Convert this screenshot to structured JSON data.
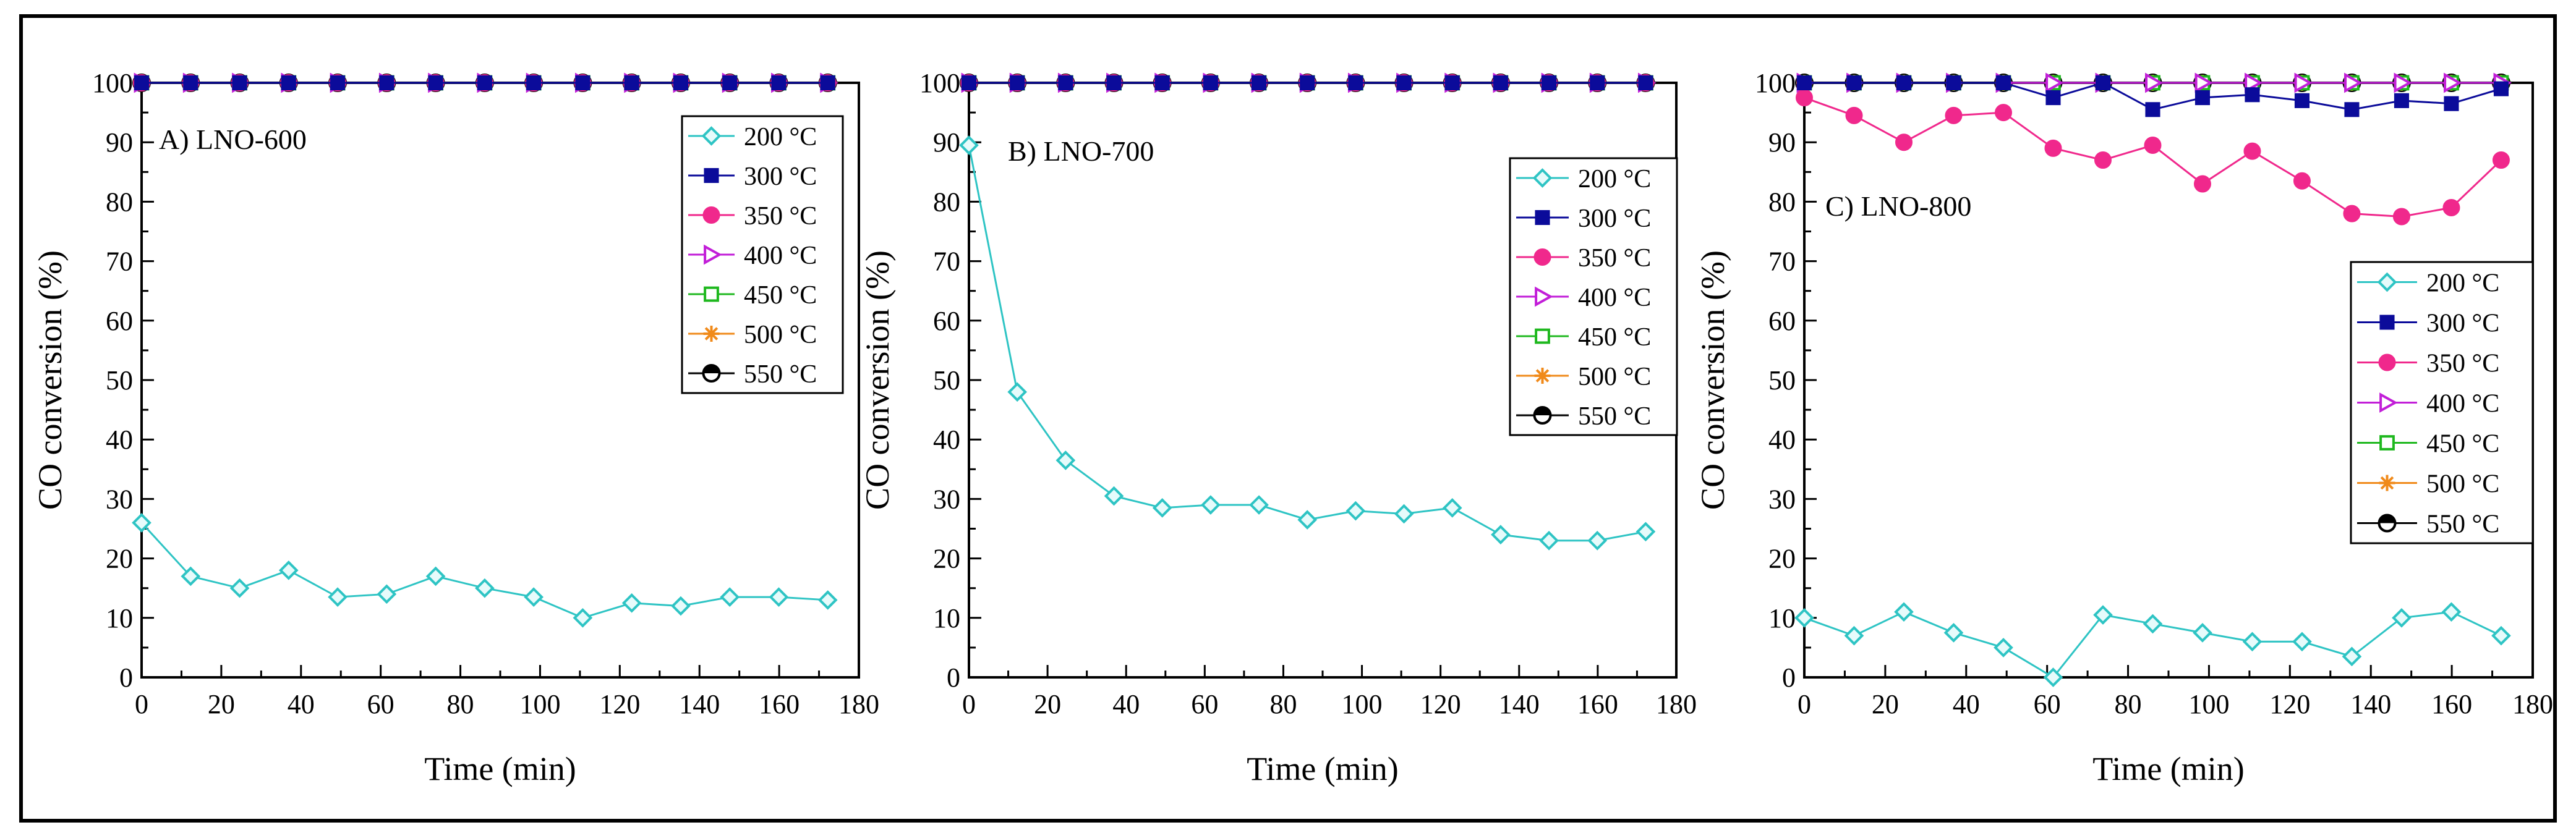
{
  "figure": {
    "colors": {
      "s200": "#2EC4C4",
      "s300": "#0B0B9A",
      "s350": "#F0288C",
      "s400": "#C21ED8",
      "s450": "#1FB81F",
      "s500": "#F08A1A",
      "s550": "#000000"
    }
  },
  "chart_data": [
    {
      "type": "line",
      "title": "A) LNO-600",
      "xlabel": "Time (min)",
      "ylabel": "CO conversion (%)",
      "xlim": [
        0,
        180
      ],
      "ylim": [
        0,
        100
      ],
      "xticks": [
        "0",
        "20",
        "40",
        "60",
        "80",
        "100",
        "120",
        "140",
        "160",
        "180"
      ],
      "yticks": [
        "0",
        "10",
        "20",
        "30",
        "40",
        "50",
        "60",
        "70",
        "80",
        "90",
        "100"
      ],
      "x": [
        0,
        12.3,
        24.6,
        36.9,
        49.2,
        61.5,
        73.8,
        86.1,
        98.4,
        110.7,
        123,
        135.3,
        147.6,
        159.9,
        172.2
      ],
      "series": [
        {
          "name": "200 °C",
          "marker": "diamond",
          "color": "#2EC4C4",
          "values": [
            26,
            17,
            15,
            18,
            13.5,
            14,
            17,
            15,
            13.5,
            10,
            12.5,
            12,
            13.5,
            13.5,
            13
          ]
        },
        {
          "name": "300 °C",
          "marker": "square",
          "color": "#0B0B9A",
          "values": [
            100,
            100,
            100,
            100,
            100,
            100,
            100,
            100,
            100,
            100,
            100,
            100,
            100,
            100,
            100
          ]
        },
        {
          "name": "350 °C",
          "marker": "circle",
          "color": "#F0288C",
          "values": [
            100,
            100,
            100,
            100,
            100,
            100,
            100,
            100,
            100,
            100,
            100,
            100,
            100,
            100,
            100
          ]
        },
        {
          "name": "400 °C",
          "marker": "triangle-right-open",
          "color": "#C21ED8",
          "values": [
            100,
            100,
            100,
            100,
            100,
            100,
            100,
            100,
            100,
            100,
            100,
            100,
            100,
            100,
            100
          ]
        },
        {
          "name": "450 °C",
          "marker": "square-open",
          "color": "#1FB81F",
          "values": [
            100,
            100,
            100,
            100,
            100,
            100,
            100,
            100,
            100,
            100,
            100,
            100,
            100,
            100,
            100
          ]
        },
        {
          "name": "500 °C",
          "marker": "star",
          "color": "#F08A1A",
          "values": [
            100,
            100,
            100,
            100,
            100,
            100,
            100,
            100,
            100,
            100,
            100,
            100,
            100,
            100,
            100
          ]
        },
        {
          "name": "550 °C",
          "marker": "half-circle",
          "color": "#000000",
          "values": [
            100,
            100,
            100,
            100,
            100,
            100,
            100,
            100,
            100,
            100,
            100,
            100,
            100,
            100,
            100
          ]
        }
      ],
      "legend": "top-right"
    },
    {
      "type": "line",
      "title": "B) LNO-700",
      "xlabel": "Time (min)",
      "ylabel": "CO conversion (%)",
      "xlim": [
        0,
        180
      ],
      "ylim": [
        0,
        100
      ],
      "xticks": [
        "0",
        "20",
        "40",
        "60",
        "80",
        "100",
        "120",
        "140",
        "160",
        "180"
      ],
      "yticks": [
        "0",
        "10",
        "20",
        "30",
        "40",
        "50",
        "60",
        "70",
        "80",
        "90",
        "100"
      ],
      "x": [
        0,
        12.3,
        24.6,
        36.9,
        49.2,
        61.5,
        73.8,
        86.1,
        98.4,
        110.7,
        123,
        135.3,
        147.6,
        159.9,
        172.2
      ],
      "series": [
        {
          "name": "200 °C",
          "marker": "diamond",
          "color": "#2EC4C4",
          "values": [
            89.5,
            48,
            36.5,
            30.5,
            28.5,
            29,
            29,
            26.5,
            28,
            27.5,
            28.5,
            24,
            23,
            23,
            24.5
          ]
        },
        {
          "name": "300 °C",
          "marker": "square",
          "color": "#0B0B9A",
          "values": [
            100,
            100,
            100,
            100,
            100,
            100,
            100,
            100,
            100,
            100,
            100,
            100,
            100,
            100,
            100
          ]
        },
        {
          "name": "350 °C",
          "marker": "circle",
          "color": "#F0288C",
          "values": [
            100,
            100,
            100,
            100,
            100,
            100,
            100,
            100,
            100,
            100,
            100,
            100,
            100,
            100,
            100
          ]
        },
        {
          "name": "400 °C",
          "marker": "triangle-right-open",
          "color": "#C21ED8",
          "values": [
            100,
            100,
            100,
            100,
            100,
            100,
            100,
            100,
            100,
            100,
            100,
            100,
            100,
            100,
            100
          ]
        },
        {
          "name": "450 °C",
          "marker": "square-open",
          "color": "#1FB81F",
          "values": [
            100,
            100,
            100,
            100,
            100,
            100,
            100,
            100,
            100,
            100,
            100,
            100,
            100,
            100,
            100
          ]
        },
        {
          "name": "500 °C",
          "marker": "star",
          "color": "#F08A1A",
          "values": [
            100,
            100,
            100,
            100,
            100,
            100,
            100,
            100,
            100,
            100,
            100,
            100,
            100,
            100,
            100
          ]
        },
        {
          "name": "550 °C",
          "marker": "half-circle",
          "color": "#000000",
          "values": [
            100,
            100,
            100,
            100,
            100,
            100,
            100,
            100,
            100,
            100,
            100,
            100,
            100,
            100,
            100
          ]
        }
      ],
      "legend": "top-right"
    },
    {
      "type": "line",
      "title": "C) LNO-800",
      "xlabel": "Time (min)",
      "ylabel": "CO conversion (%)",
      "xlim": [
        0,
        180
      ],
      "ylim": [
        0,
        100
      ],
      "xticks": [
        "0",
        "20",
        "40",
        "60",
        "80",
        "100",
        "120",
        "140",
        "160",
        "180"
      ],
      "yticks": [
        "0",
        "10",
        "20",
        "30",
        "40",
        "50",
        "60",
        "70",
        "80",
        "90",
        "100"
      ],
      "x": [
        0,
        12.3,
        24.6,
        36.9,
        49.2,
        61.5,
        73.8,
        86.1,
        98.4,
        110.7,
        123,
        135.3,
        147.6,
        159.9,
        172.2
      ],
      "series": [
        {
          "name": "200 °C",
          "marker": "diamond",
          "color": "#2EC4C4",
          "values": [
            10,
            7,
            11,
            7.5,
            5,
            0,
            10.5,
            9,
            7.5,
            6,
            6,
            3.5,
            10,
            11,
            7
          ]
        },
        {
          "name": "300 °C",
          "marker": "square",
          "color": "#0B0B9A",
          "values": [
            100,
            100,
            100,
            100,
            100,
            97.5,
            100,
            95.5,
            97.5,
            98,
            97,
            95.5,
            97,
            96.5,
            99
          ]
        },
        {
          "name": "350 °C",
          "marker": "circle",
          "color": "#F0288C",
          "values": [
            97.5,
            94.5,
            90,
            94.5,
            95,
            89,
            87,
            89.5,
            83,
            88.5,
            83.5,
            78,
            77.5,
            79,
            87
          ]
        },
        {
          "name": "400 °C",
          "marker": "triangle-right-open",
          "color": "#C21ED8",
          "values": [
            100,
            100,
            100,
            100,
            100,
            100,
            100,
            100,
            100,
            100,
            100,
            100,
            100,
            100,
            100
          ]
        },
        {
          "name": "450 °C",
          "marker": "square-open",
          "color": "#1FB81F",
          "values": [
            100,
            100,
            100,
            100,
            100,
            100,
            100,
            100,
            100,
            100,
            100,
            100,
            100,
            100,
            100
          ]
        },
        {
          "name": "500 °C",
          "marker": "star",
          "color": "#F08A1A",
          "values": [
            100,
            100,
            100,
            100,
            100,
            100,
            100,
            100,
            100,
            100,
            100,
            100,
            100,
            100,
            100
          ]
        },
        {
          "name": "550 °C",
          "marker": "half-circle",
          "color": "#000000",
          "values": [
            100,
            100,
            100,
            100,
            100,
            100,
            100,
            100,
            100,
            100,
            100,
            100,
            100,
            100,
            100
          ]
        }
      ],
      "legend": "right"
    }
  ]
}
